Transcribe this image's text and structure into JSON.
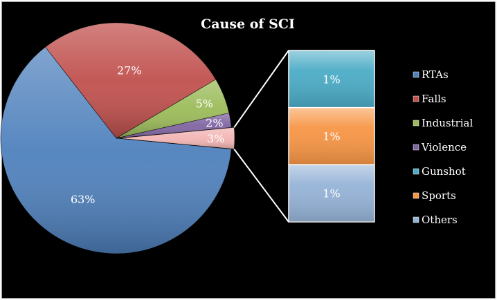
{
  "chart_data": {
    "type": "pie",
    "subtype": "pie-of-pie",
    "title": "Cause of SCI",
    "legend_position": "right",
    "slices": [
      {
        "name": "RTAs",
        "value": 63,
        "label": "63%",
        "color": "#4f81bd"
      },
      {
        "name": "Falls",
        "value": 27,
        "label": "27%",
        "color": "#c0504d"
      },
      {
        "name": "Industrial",
        "value": 5,
        "label": "5%",
        "color": "#9bbb59"
      },
      {
        "name": "Violence",
        "value": 2,
        "label": "2%",
        "color": "#8064a2"
      },
      {
        "name": "Other",
        "value": 3,
        "label": "3%",
        "color": "#f2b5b4"
      }
    ],
    "breakdown": [
      {
        "name": "Gunshot",
        "value": 1,
        "label": "1%",
        "color": "#4bacc6"
      },
      {
        "name": "Sports",
        "value": 1,
        "label": "1%",
        "color": "#f79646"
      },
      {
        "name": "Others",
        "value": 1,
        "label": "1%",
        "color": "#95b3d7"
      }
    ],
    "legend": [
      {
        "name": "RTAs",
        "color": "#4f81bd"
      },
      {
        "name": "Falls",
        "color": "#c0504d"
      },
      {
        "name": "Industrial",
        "color": "#9bbb59"
      },
      {
        "name": "Violence",
        "color": "#8064a2"
      },
      {
        "name": "Gunshot",
        "color": "#4bacc6"
      },
      {
        "name": "Sports",
        "color": "#f79646"
      },
      {
        "name": "Others",
        "color": "#95b3d7"
      }
    ]
  }
}
